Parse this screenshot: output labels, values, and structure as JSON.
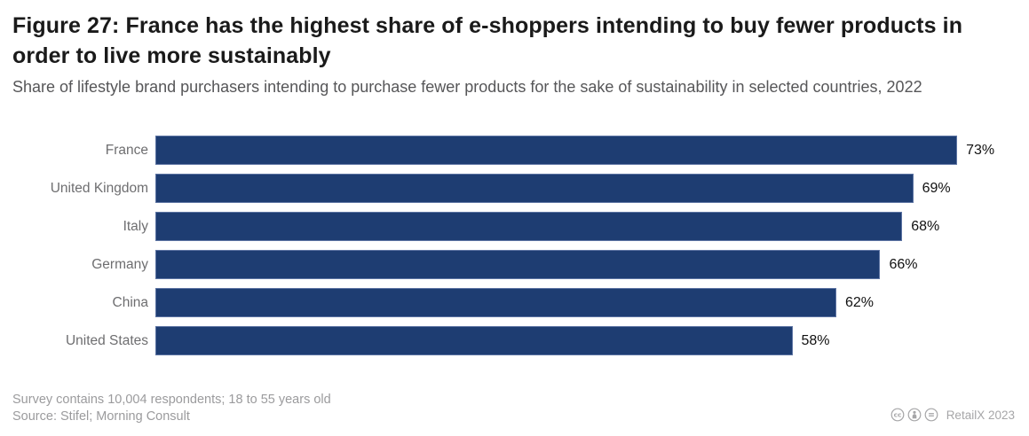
{
  "title": "Figure 27: France has the highest share of e-shoppers intending to buy fewer products in order to live more sustainably",
  "subtitle": "Share of lifestyle brand purchasers intending to purchase fewer products for the sake of sustainability in selected countries, 2022",
  "chart_data": {
    "type": "bar",
    "orientation": "horizontal",
    "categories": [
      "France",
      "United Kingdom",
      "Italy",
      "Germany",
      "China",
      "United States"
    ],
    "values": [
      73,
      69,
      68,
      66,
      62,
      58
    ],
    "value_labels": [
      "73%",
      "69%",
      "68%",
      "66%",
      "62%",
      "58%"
    ],
    "title": "Share of lifestyle brand purchasers intending to purchase fewer products for the sake of sustainability in selected countries, 2022",
    "xlabel": "",
    "ylabel": "",
    "axis_visible": false,
    "grid": false,
    "legend": "none",
    "bar_color": "#1e3d72",
    "value_label_position": "outside-end"
  },
  "footer": {
    "line1": "Survey contains 10,004 respondents; 18 to 55 years old",
    "line2": "Source: Stifel; Morning Consult"
  },
  "credit": {
    "label": "RetailX 2023",
    "icons": [
      "cc-icon",
      "cc-by-icon",
      "cc-nd-icon"
    ]
  },
  "colors": {
    "bar": "#1e3d72",
    "bar_edge": "#5d74a3",
    "title_text": "#1a1a1a",
    "subtitle_text": "#565658",
    "country_label_text": "#6e6e70",
    "value_label_text": "#111111",
    "footer_text": "#9b9b9d",
    "credit_text": "#a6a6a8",
    "background": "#ffffff"
  }
}
